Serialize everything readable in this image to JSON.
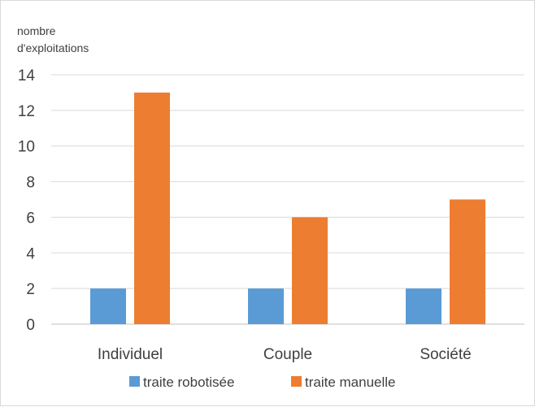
{
  "chart_data": {
    "type": "bar",
    "title": "",
    "xlabel": "",
    "ylabel": [
      "nombre",
      "d'exploitations"
    ],
    "categories": [
      "Individuel",
      "Couple",
      "Société"
    ],
    "series": [
      {
        "name": "traite robotisée",
        "values": [
          2,
          2,
          2
        ],
        "color": "#5b9bd5"
      },
      {
        "name": "traite manuelle",
        "values": [
          13,
          6,
          7
        ],
        "color": "#ed7d31"
      }
    ],
    "ylim": [
      0,
      14
    ],
    "yticks": [
      0,
      2,
      4,
      6,
      8,
      10,
      12,
      14
    ],
    "grid": true,
    "legend_position": "bottom"
  }
}
